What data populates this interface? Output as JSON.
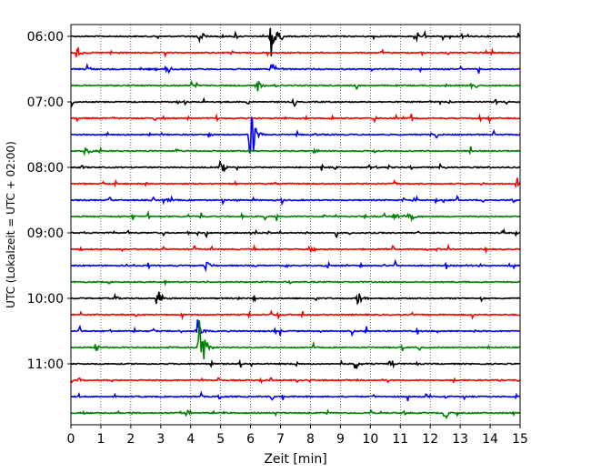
{
  "chart_data": {
    "type": "line",
    "title": "",
    "xlabel": "Zeit  [min]",
    "ylabel": "UTC (Lokalzeit = UTC + 02:00)",
    "xlim": [
      0,
      15
    ],
    "x_ticks": [
      0,
      1,
      2,
      3,
      4,
      5,
      6,
      7,
      8,
      9,
      10,
      11,
      12,
      13,
      14,
      15
    ],
    "x_tick_labels": [
      "0",
      "1",
      "2",
      "3",
      "4",
      "5",
      "6",
      "7",
      "8",
      "9",
      "10",
      "11",
      "12",
      "13",
      "14",
      "15"
    ],
    "y_tick_labels": [
      "06:00",
      "07:00",
      "08:00",
      "09:00",
      "10:00",
      "11:00"
    ],
    "grid": "vertical dotted",
    "colors": [
      "#000000",
      "#ff0000",
      "#0000ff",
      "#008000"
    ],
    "traces": [
      {
        "start": "06:00",
        "color": "#000000",
        "events": [
          {
            "t": 4.3,
            "a": 0.5
          },
          {
            "t": 6.7,
            "a": 1.6
          },
          {
            "t": 11.5,
            "a": 0.4
          }
        ]
      },
      {
        "start": "06:15",
        "color": "#ff0000",
        "events": [
          {
            "t": 0.2,
            "a": 0.4
          }
        ]
      },
      {
        "start": "06:30",
        "color": "#0000ff",
        "events": [
          {
            "t": 3.2,
            "a": 0.4
          },
          {
            "t": 6.7,
            "a": 0.6
          }
        ]
      },
      {
        "start": "06:45",
        "color": "#008000",
        "events": [
          {
            "t": 6.2,
            "a": 0.5
          }
        ]
      },
      {
        "start": "07:00",
        "color": "#000000",
        "events": []
      },
      {
        "start": "07:15",
        "color": "#ff0000",
        "events": []
      },
      {
        "start": "07:30",
        "color": "#0000ff",
        "events": [
          {
            "t": 6.0,
            "a": 2.5
          }
        ]
      },
      {
        "start": "07:45",
        "color": "#008000",
        "events": [
          {
            "t": 0.5,
            "a": 0.4
          }
        ]
      },
      {
        "start": "08:00",
        "color": "#000000",
        "events": [
          {
            "t": 5.0,
            "a": 0.5
          }
        ]
      },
      {
        "start": "08:15",
        "color": "#ff0000",
        "events": [
          {
            "t": 14.9,
            "a": 0.4
          }
        ]
      },
      {
        "start": "08:30",
        "color": "#0000ff",
        "events": []
      },
      {
        "start": "08:45",
        "color": "#008000",
        "events": [
          {
            "t": 11.3,
            "a": 0.5
          }
        ]
      },
      {
        "start": "09:00",
        "color": "#000000",
        "events": []
      },
      {
        "start": "09:15",
        "color": "#ff0000",
        "events": [
          {
            "t": 8.0,
            "a": 0.4
          }
        ]
      },
      {
        "start": "09:30",
        "color": "#0000ff",
        "events": [
          {
            "t": 4.5,
            "a": 0.4
          }
        ]
      },
      {
        "start": "09:45",
        "color": "#008000",
        "events": []
      },
      {
        "start": "10:00",
        "color": "#000000",
        "events": [
          {
            "t": 2.9,
            "a": 0.6
          },
          {
            "t": 9.6,
            "a": 0.6
          }
        ]
      },
      {
        "start": "10:15",
        "color": "#ff0000",
        "events": []
      },
      {
        "start": "10:30",
        "color": "#0000ff",
        "events": [
          {
            "t": 4.2,
            "a": 0.9
          }
        ]
      },
      {
        "start": "10:45",
        "color": "#008000",
        "events": [
          {
            "t": 4.3,
            "a": 2.5
          },
          {
            "t": 0.8,
            "a": 0.5
          }
        ]
      },
      {
        "start": "11:00",
        "color": "#000000",
        "events": [
          {
            "t": 9.5,
            "a": 0.4
          }
        ]
      },
      {
        "start": "11:15",
        "color": "#ff0000",
        "events": []
      },
      {
        "start": "11:30",
        "color": "#0000ff",
        "events": []
      },
      {
        "start": "11:45",
        "color": "#008000",
        "events": [
          {
            "t": 12.5,
            "a": 0.4
          }
        ]
      }
    ]
  }
}
